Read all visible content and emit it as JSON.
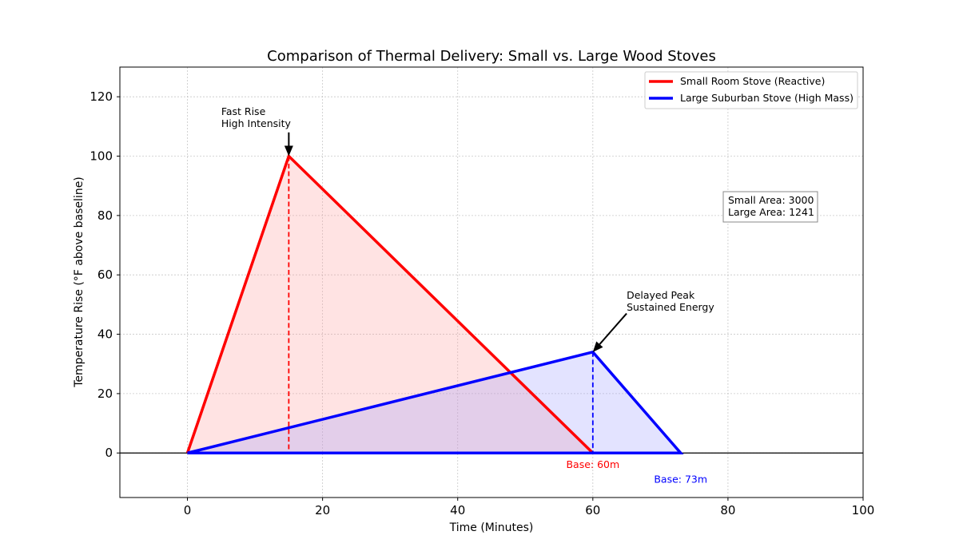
{
  "chart_data": {
    "type": "area",
    "title": "Comparison of Thermal Delivery: Small vs. Large Wood Stoves",
    "xlabel": "Time (Minutes)",
    "ylabel": "Temperature Rise (°F above baseline)",
    "xlim": [
      -10,
      100
    ],
    "ylim": [
      -15,
      130
    ],
    "xticks": [
      0,
      20,
      40,
      60,
      80,
      100
    ],
    "yticks": [
      0,
      20,
      40,
      60,
      80,
      100,
      120
    ],
    "grid": true,
    "legend_position": "top-right",
    "series": [
      {
        "name": "Small Room Stove (Reactive)",
        "color": "#ff0000",
        "fill": "#ff9999",
        "x": [
          0,
          15,
          60
        ],
        "y": [
          0,
          100,
          0
        ],
        "peak": [
          15,
          100
        ],
        "base_label": "Base: 60m",
        "base_label_pos": [
          60,
          -4
        ]
      },
      {
        "name": "Large Suburban Stove (High Mass)",
        "color": "#0000ff",
        "fill": "#9999ff",
        "x": [
          0,
          60,
          73
        ],
        "y": [
          0,
          34,
          0
        ],
        "peak": [
          60,
          34
        ],
        "base_label": "Base: 73m",
        "base_label_pos": [
          73,
          -9
        ]
      }
    ],
    "annotations": [
      {
        "lines": [
          "Fast Rise",
          "High Intensity"
        ],
        "text_at": [
          5,
          115
        ],
        "arrow_to": [
          15,
          100
        ],
        "arrow_from": [
          15,
          108
        ]
      },
      {
        "lines": [
          "Delayed Peak",
          "Sustained Energy"
        ],
        "text_at": [
          65,
          53
        ],
        "arrow_to": [
          60,
          34
        ],
        "arrow_from": [
          65,
          47
        ]
      }
    ],
    "info_box": {
      "lines": [
        "Small Area: 3000",
        "Large Area: 1241"
      ],
      "anchor": [
        79.5,
        86
      ]
    }
  }
}
